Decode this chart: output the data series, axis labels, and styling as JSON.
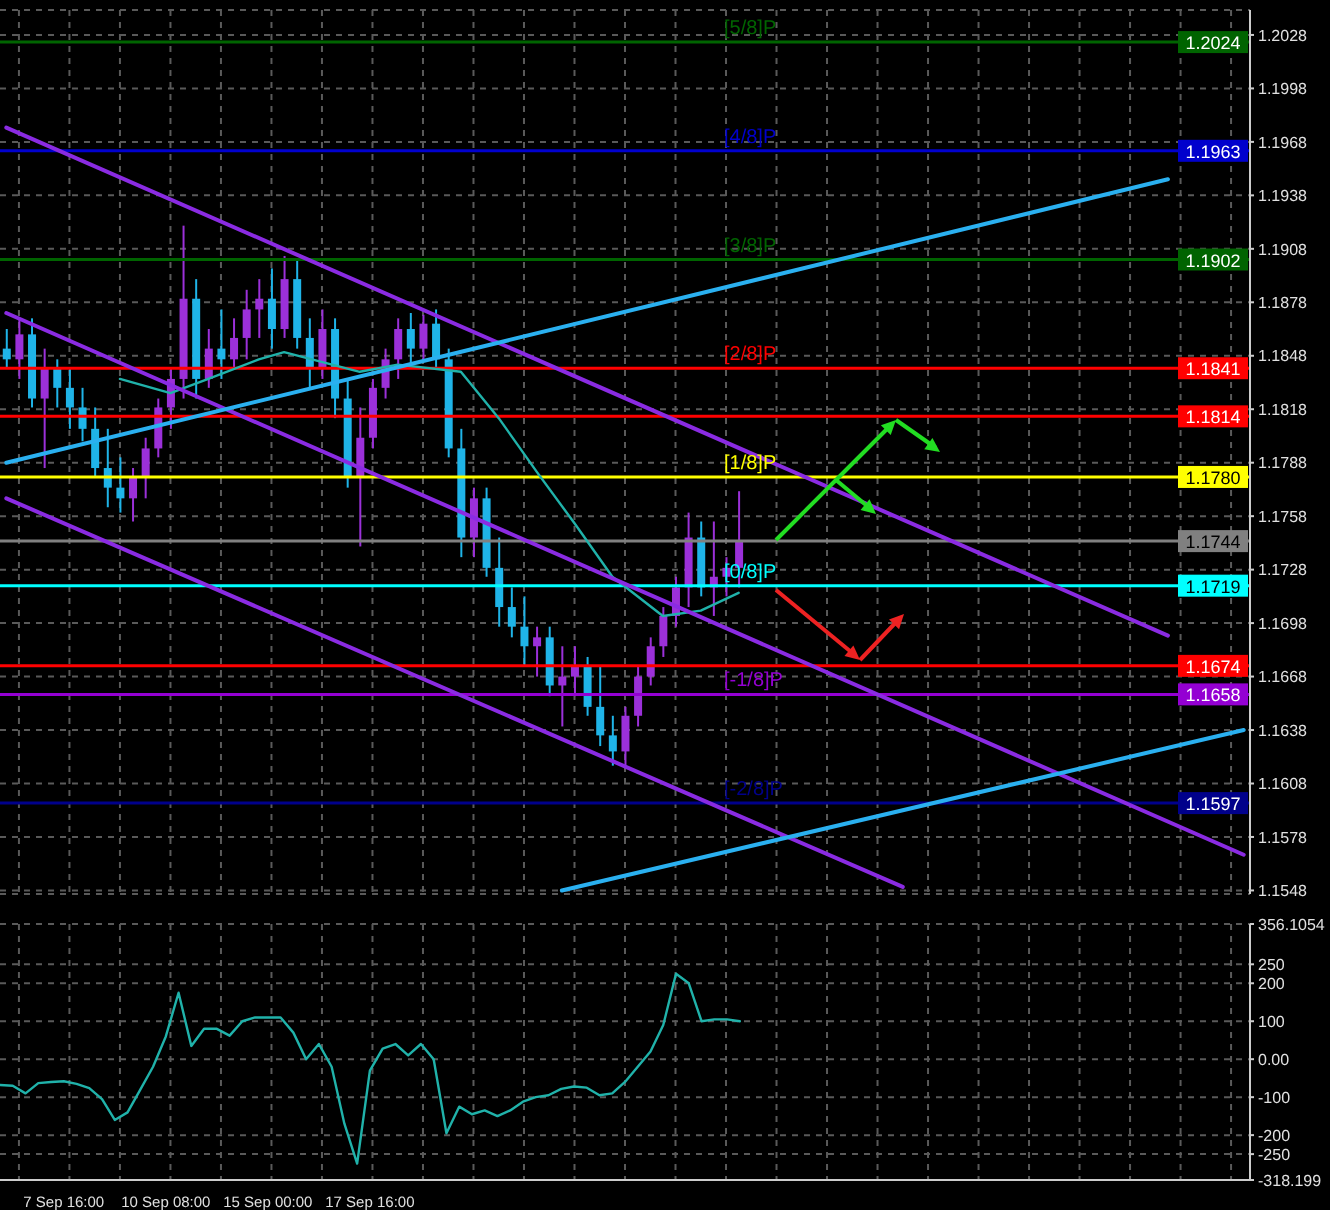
{
  "chart_data": [
    {
      "type": "candlestick",
      "categories": [
        null,
        null,
        null,
        null,
        null,
        null,
        null,
        null,
        null,
        null,
        null,
        null,
        null,
        null,
        null,
        null,
        null,
        null,
        null,
        null,
        null,
        null,
        null,
        null,
        null,
        null,
        null,
        null,
        null,
        null,
        null,
        null,
        null,
        null,
        null,
        null,
        null,
        null,
        null,
        null,
        null,
        null,
        null,
        null,
        null,
        null,
        null,
        null,
        null,
        null,
        null,
        null,
        null,
        null,
        null,
        null,
        null,
        null,
        null,
        null,
        null,
        null,
        null,
        null,
        null,
        null,
        null,
        null,
        null,
        null,
        null,
        null,
        null,
        null,
        null,
        null,
        null,
        null,
        null,
        null,
        null,
        null,
        null,
        null,
        null,
        null,
        null,
        null,
        null,
        null,
        null,
        null,
        null,
        null,
        null,
        null,
        null,
        null,
        null
      ],
      "ohlc": [
        [
          1.1852,
          1.1863,
          1.1841,
          1.1846
        ],
        [
          1.1846,
          1.1869,
          1.1835,
          1.186
        ],
        [
          1.186,
          1.1869,
          1.1819,
          1.1824
        ],
        [
          1.1824,
          1.1852,
          1.1785,
          1.1841
        ],
        [
          1.1841,
          1.1846,
          1.1819,
          1.183
        ],
        [
          1.183,
          1.1841,
          1.1807,
          1.1819
        ],
        [
          1.1819,
          1.183,
          1.18,
          1.1807
        ],
        [
          1.1807,
          1.1819,
          1.178,
          1.1785
        ],
        [
          1.1785,
          1.1807,
          1.1763,
          1.1774
        ],
        [
          1.1774,
          1.1791,
          1.176,
          1.1768
        ],
        [
          1.1768,
          1.1785,
          1.1755,
          1.178
        ],
        [
          1.178,
          1.1802,
          1.1768,
          1.1796
        ],
        [
          1.1796,
          1.1824,
          1.1791,
          1.1819
        ],
        [
          1.1819,
          1.1841,
          1.1807,
          1.1835
        ],
        [
          1.1835,
          1.1921,
          1.1824,
          1.188
        ],
        [
          1.188,
          1.1891,
          1.1824,
          1.1835
        ],
        [
          1.1835,
          1.1863,
          1.183,
          1.1852
        ],
        [
          1.1852,
          1.1874,
          1.1835,
          1.1846
        ],
        [
          1.1846,
          1.1869,
          1.1841,
          1.1858
        ],
        [
          1.1858,
          1.1885,
          1.1846,
          1.1874
        ],
        [
          1.1874,
          1.1891,
          1.1858,
          1.188
        ],
        [
          1.188,
          1.1897,
          1.1852,
          1.1863
        ],
        [
          1.1863,
          1.1904,
          1.1858,
          1.1891
        ],
        [
          1.1891,
          1.1902,
          1.1852,
          1.1858
        ],
        [
          1.1858,
          1.1869,
          1.183,
          1.1841
        ],
        [
          1.1841,
          1.1874,
          1.1835,
          1.1863
        ],
        [
          1.1863,
          1.1869,
          1.1813,
          1.1824
        ],
        [
          1.1824,
          1.1835,
          1.1774,
          1.178
        ],
        [
          1.178,
          1.1819,
          1.1741,
          1.1802
        ],
        [
          1.1802,
          1.1835,
          1.1796,
          1.183
        ],
        [
          1.183,
          1.1852,
          1.1824,
          1.1846
        ],
        [
          1.1846,
          1.1869,
          1.1835,
          1.1863
        ],
        [
          1.1863,
          1.1872,
          1.1841,
          1.1852
        ],
        [
          1.1852,
          1.1871,
          1.1846,
          1.1866
        ],
        [
          1.1866,
          1.1874,
          1.1841,
          1.1846
        ],
        [
          1.1846,
          1.1852,
          1.1791,
          1.1796
        ],
        [
          1.1796,
          1.1807,
          1.1735,
          1.1746
        ],
        [
          1.1746,
          1.1774,
          1.1735,
          1.1768
        ],
        [
          1.1768,
          1.1774,
          1.1724,
          1.1729
        ],
        [
          1.1729,
          1.1746,
          1.1696,
          1.1707
        ],
        [
          1.1707,
          1.1718,
          1.169,
          1.1696
        ],
        [
          1.1696,
          1.1713,
          1.1674,
          1.1685
        ],
        [
          1.1685,
          1.1696,
          1.1668,
          1.169
        ],
        [
          1.169,
          1.1696,
          1.1657,
          1.1663
        ],
        [
          1.1663,
          1.1685,
          1.164,
          1.1668
        ],
        [
          1.1668,
          1.1685,
          1.1657,
          1.1674
        ],
        [
          1.1674,
          1.1679,
          1.1646,
          1.1651
        ],
        [
          1.1651,
          1.1674,
          1.1629,
          1.1635
        ],
        [
          1.1635,
          1.1646,
          1.1618,
          1.1626
        ],
        [
          1.1626,
          1.1651,
          1.1618,
          1.1646
        ],
        [
          1.1646,
          1.1674,
          1.164,
          1.1668
        ],
        [
          1.1668,
          1.169,
          1.1663,
          1.1685
        ],
        [
          1.1685,
          1.1707,
          1.1679,
          1.1702
        ],
        [
          1.1702,
          1.1724,
          1.1696,
          1.1718
        ],
        [
          1.1718,
          1.176,
          1.1707,
          1.1746
        ],
        [
          1.1746,
          1.1755,
          1.1713,
          1.1718
        ],
        [
          1.1718,
          1.1755,
          1.1702,
          1.1724
        ],
        [
          1.1724,
          1.1735,
          1.1713,
          1.1729
        ],
        [
          1.1729,
          1.1772,
          1.1718,
          1.1744
        ],
        null,
        null,
        null,
        null,
        null,
        null,
        null,
        null,
        null,
        null,
        null,
        null,
        null,
        null,
        null,
        null,
        null,
        null,
        null,
        null,
        null,
        null,
        null,
        null,
        null,
        null,
        null,
        null,
        null,
        null,
        null,
        null,
        null,
        null,
        null,
        null,
        null,
        null,
        null,
        null
      ],
      "colors": [
        "#1fb4e8",
        "#9b30d9",
        "#1fb4e8",
        "#9b30d9",
        "#1fb4e8",
        "#1fb4e8",
        "#1fb4e8",
        "#1fb4e8",
        "#1fb4e8",
        "#1fb4e8",
        "#9b30d9",
        "#9b30d9",
        "#9b30d9",
        "#9b30d9",
        "#9b30d9",
        "#1fb4e8",
        "#9b30d9",
        "#1fb4e8",
        "#9b30d9",
        "#9b30d9",
        "#9b30d9",
        "#1fb4e8",
        "#9b30d9",
        "#1fb4e8",
        "#1fb4e8",
        "#9b30d9",
        "#1fb4e8",
        "#1fb4e8",
        "#9b30d9",
        "#9b30d9",
        "#9b30d9",
        "#9b30d9",
        "#1fb4e8",
        "#9b30d9",
        "#1fb4e8",
        "#1fb4e8",
        "#1fb4e8",
        "#9b30d9",
        "#1fb4e8",
        "#1fb4e8",
        "#1fb4e8",
        "#1fb4e8",
        "#9b30d9",
        "#1fb4e8",
        "#9b30d9",
        "#9b30d9",
        "#1fb4e8",
        "#1fb4e8",
        "#1fb4e8",
        "#9b30d9",
        "#9b30d9",
        "#9b30d9",
        "#9b30d9",
        "#9b30d9",
        "#9b30d9",
        "#1fb4e8",
        "#9b30d9",
        "#9b30d9",
        "#9b30d9",
        null,
        null,
        null,
        null,
        null,
        null,
        null,
        null,
        null,
        null,
        null,
        null,
        null,
        null,
        null,
        null,
        null,
        null,
        null,
        null,
        null,
        null,
        null,
        null,
        null,
        null,
        null,
        null,
        null,
        null,
        null,
        null,
        null,
        null,
        null,
        null,
        null,
        null,
        null,
        null
      ],
      "series": [
        {
          "type": "line",
          "color": "#20b2aa",
          "values": [
            null,
            null,
            null,
            null,
            null,
            null,
            null,
            null,
            null,
            1.1835,
            null,
            null,
            null,
            1.1827,
            null,
            null,
            1.1835,
            null,
            null,
            null,
            1.1846,
            null,
            1.185,
            null,
            null,
            null,
            null,
            null,
            1.1839,
            null,
            null,
            1.1843,
            null,
            null,
            null,
            null,
            1.1839,
            null,
            null,
            1.1813,
            null,
            null,
            1.1783,
            null,
            null,
            1.1754,
            null,
            null,
            1.1724,
            null,
            null,
            null,
            1.1702,
            null,
            null,
            1.1705,
            null,
            null,
            1.1715,
            null,
            null,
            null,
            null,
            null,
            null,
            null,
            null,
            null,
            null,
            null,
            null,
            null,
            null,
            null,
            null,
            null,
            null,
            null,
            null,
            null,
            null,
            null,
            null,
            null,
            null,
            null,
            null,
            null,
            null,
            null,
            null,
            null,
            null,
            null,
            null,
            null,
            null,
            null,
            null
          ]
        },
        {
          "type": "line",
          "color": "#8a2be2",
          "values": [
            1.1976,
            null,
            null,
            null,
            null,
            null,
            null,
            null,
            null,
            null,
            null,
            null,
            null,
            null,
            null,
            null,
            null,
            null,
            null,
            null,
            null,
            null,
            null,
            null,
            null,
            null,
            null,
            null,
            null,
            null,
            null,
            null,
            null,
            null,
            null,
            null,
            null,
            null,
            null,
            null,
            null,
            null,
            null,
            null,
            null,
            null,
            null,
            null,
            null,
            null,
            null,
            null,
            null,
            null,
            null,
            null,
            null,
            null,
            null,
            null,
            null,
            null,
            null,
            null,
            null,
            null,
            null,
            null,
            null,
            null,
            null,
            null,
            null,
            null,
            null,
            null,
            null,
            null,
            null,
            null,
            null,
            null,
            null,
            null,
            null,
            null,
            null,
            null,
            null,
            null,
            null,
            null,
            1.1691,
            null,
            null,
            null,
            null,
            null,
            null
          ]
        },
        {
          "type": "line",
          "color": "#8a2be2",
          "values": [
            1.1872,
            null,
            null,
            null,
            null,
            null,
            null,
            null,
            null,
            null,
            null,
            null,
            null,
            null,
            null,
            null,
            null,
            null,
            null,
            null,
            null,
            null,
            null,
            null,
            null,
            null,
            null,
            null,
            null,
            null,
            null,
            null,
            null,
            null,
            null,
            null,
            null,
            null,
            null,
            null,
            null,
            null,
            null,
            null,
            null,
            null,
            null,
            null,
            null,
            null,
            null,
            null,
            null,
            null,
            null,
            null,
            null,
            null,
            null,
            null,
            null,
            null,
            null,
            null,
            null,
            null,
            null,
            null,
            null,
            null,
            null,
            null,
            null,
            null,
            null,
            null,
            null,
            null,
            null,
            null,
            null,
            null,
            null,
            null,
            null,
            null,
            null,
            null,
            null,
            null,
            null,
            null,
            null,
            null,
            null,
            null,
            null,
            null,
            1.1568
          ]
        },
        {
          "type": "line",
          "color": "#8a2be2",
          "values": [
            1.1768,
            null,
            null,
            null,
            null,
            null,
            null,
            null,
            null,
            null,
            null,
            null,
            null,
            null,
            null,
            null,
            null,
            null,
            null,
            null,
            null,
            null,
            null,
            null,
            null,
            null,
            null,
            null,
            null,
            null,
            null,
            null,
            null,
            null,
            null,
            null,
            null,
            null,
            null,
            null,
            null,
            null,
            null,
            null,
            null,
            null,
            null,
            null,
            null,
            null,
            null,
            null,
            null,
            null,
            null,
            null,
            null,
            null,
            null,
            null,
            null,
            null,
            null,
            null,
            null,
            null,
            null,
            null,
            null,
            null,
            null,
            1.155,
            null,
            null,
            null,
            null,
            null,
            null,
            null,
            null,
            null,
            null,
            null,
            null,
            null,
            null,
            null,
            null,
            null,
            null,
            null,
            null,
            null,
            null,
            null,
            null,
            null,
            null,
            null
          ]
        },
        {
          "type": "line",
          "color": "#2ab0f0",
          "values": [
            1.1788,
            null,
            null,
            null,
            null,
            null,
            null,
            null,
            null,
            null,
            null,
            null,
            null,
            null,
            null,
            null,
            null,
            null,
            null,
            null,
            null,
            null,
            null,
            null,
            null,
            null,
            null,
            null,
            null,
            null,
            null,
            null,
            null,
            null,
            null,
            null,
            null,
            null,
            null,
            null,
            null,
            null,
            null,
            null,
            null,
            null,
            null,
            null,
            null,
            null,
            null,
            null,
            null,
            null,
            null,
            null,
            null,
            null,
            null,
            null,
            null,
            null,
            null,
            null,
            null,
            null,
            null,
            null,
            null,
            null,
            null,
            null,
            null,
            null,
            null,
            null,
            null,
            null,
            null,
            null,
            null,
            null,
            null,
            null,
            null,
            null,
            null,
            null,
            null,
            null,
            null,
            null,
            1.1947,
            null,
            null,
            null,
            null,
            null,
            null
          ]
        },
        {
          "type": "line",
          "color": "#2ab0f0",
          "values": [
            null,
            null,
            null,
            null,
            null,
            null,
            null,
            null,
            null,
            null,
            null,
            null,
            null,
            null,
            null,
            null,
            null,
            null,
            null,
            null,
            null,
            null,
            null,
            null,
            null,
            null,
            null,
            null,
            null,
            null,
            null,
            null,
            null,
            null,
            null,
            null,
            null,
            null,
            null,
            null,
            null,
            null,
            null,
            null,
            1.1548,
            null,
            null,
            null,
            null,
            null,
            null,
            null,
            null,
            null,
            null,
            null,
            null,
            null,
            null,
            null,
            null,
            null,
            null,
            null,
            null,
            null,
            null,
            null,
            null,
            null,
            null,
            null,
            null,
            null,
            null,
            null,
            null,
            null,
            null,
            null,
            null,
            null,
            null,
            null,
            null,
            null,
            null,
            null,
            null,
            null,
            null,
            null,
            null,
            null,
            null,
            null,
            null,
            null,
            1.1638
          ]
        }
      ],
      "ref_lines": [
        {
          "axis": "y",
          "value": 1.2024,
          "label": "1.2024",
          "color": "#006400"
        },
        {
          "axis": "y",
          "value": 1.1963,
          "label": "1.1963",
          "color": "#0000cd"
        },
        {
          "axis": "y",
          "value": 1.1902,
          "label": "1.1902",
          "color": "#006400"
        },
        {
          "axis": "y",
          "value": 1.1841,
          "label": "1.1841",
          "color": "#ff0000"
        },
        {
          "axis": "y",
          "value": 1.1814,
          "label": "1.1814",
          "color": "#ff0000"
        },
        {
          "axis": "y",
          "value": 1.178,
          "label": "1.1780",
          "color": "#ffff00"
        },
        {
          "axis": "y",
          "value": 1.1744,
          "label": "1.1744",
          "color": "#808080"
        },
        {
          "axis": "y",
          "value": 1.1719,
          "label": "1.1719",
          "color": "#00ffff"
        },
        {
          "axis": "y",
          "value": 1.1674,
          "label": "1.1674",
          "color": "#ff0000"
        },
        {
          "axis": "y",
          "value": 1.1658,
          "label": "1.1658",
          "color": "#9400d3"
        },
        {
          "axis": "y",
          "value": 1.1597,
          "label": "1.1597",
          "color": "#00008b"
        }
      ],
      "annotations": [
        {
          "text": "[5/8]P",
          "y": 1.2024
        },
        {
          "text": "[4/8]P",
          "y": 1.1963
        },
        {
          "text": "[3/8]P",
          "y": 1.1902
        },
        {
          "text": "[2/8]P",
          "y": 1.1841
        },
        {
          "text": "[1/8]P",
          "y": 1.178
        },
        {
          "text": "[0/8]P",
          "y": 1.1719
        },
        {
          "text": "[-1/8]P",
          "y": 1.1658
        },
        {
          "text": "[-2/8]P",
          "y": 1.1597
        }
      ],
      "ylim": [
        1.1546,
        1.2042
      ],
      "yticks": [
        1.1548,
        1.1578,
        1.1608,
        1.1638,
        1.1668,
        1.1698,
        1.1728,
        1.1758,
        1.1788,
        1.1818,
        1.1848,
        1.1878,
        1.1908,
        1.1938,
        1.1968,
        1.1998,
        1.2028
      ],
      "grid": true,
      "tick_labels": "y"
    },
    {
      "type": "line",
      "categories": [
        null,
        null,
        null,
        null,
        null,
        "7 Sep 16:00",
        null,
        null,
        null,
        null,
        null,
        null,
        null,
        "10 Sep 08:00",
        null,
        null,
        null,
        null,
        null,
        null,
        null,
        "15 Sep 00:00",
        null,
        null,
        null,
        null,
        null,
        null,
        null,
        "17 Sep 16:00",
        null,
        null,
        null,
        null,
        null,
        null,
        null,
        null,
        null,
        null,
        null,
        null,
        null,
        null,
        null,
        null,
        null,
        null,
        null,
        null,
        null,
        null,
        null,
        null,
        null,
        null,
        null,
        null,
        null,
        null,
        null,
        null,
        null,
        null,
        null,
        null,
        null,
        null,
        null,
        null,
        null,
        null,
        null,
        null,
        null,
        null,
        null,
        null,
        null,
        null,
        null,
        null,
        null,
        null,
        null,
        null,
        null,
        null,
        null,
        null,
        null,
        null,
        null,
        null,
        null,
        null,
        null,
        null,
        null
      ],
      "series": [
        {
          "color": "#20b2aa",
          "values": [
            -68,
            -70,
            -90,
            -63,
            -60,
            -58,
            -65,
            -76,
            -105,
            -160,
            -140,
            -80,
            -20,
            60,
            175,
            35,
            80,
            80,
            62,
            100,
            110,
            110,
            110,
            70,
            0,
            40,
            -20,
            -170,
            -275,
            -30,
            28,
            40,
            10,
            40,
            0,
            -195,
            -125,
            -145,
            -135,
            -150,
            -135,
            -112,
            -100,
            -95,
            -78,
            -72,
            -75,
            -95,
            -90,
            -60,
            -20,
            20,
            90,
            225,
            200,
            100,
            105,
            105,
            100,
            null,
            null,
            null,
            null,
            null,
            null,
            null,
            null,
            null,
            null,
            null,
            null,
            null,
            null,
            null,
            null,
            null,
            null,
            null,
            null,
            null,
            null,
            null,
            null,
            null,
            null,
            null,
            null,
            null,
            null,
            null,
            null,
            null,
            null,
            null,
            null,
            null,
            null,
            null,
            null
          ]
        }
      ],
      "ylim": [
        -318.199,
        356.1054
      ],
      "yticks": [
        356.1054,
        250,
        200,
        100,
        {
          "value": 0,
          "label": "0.00"
        },
        -100,
        -200,
        -250,
        -318.199
      ],
      "grid": true
    }
  ]
}
